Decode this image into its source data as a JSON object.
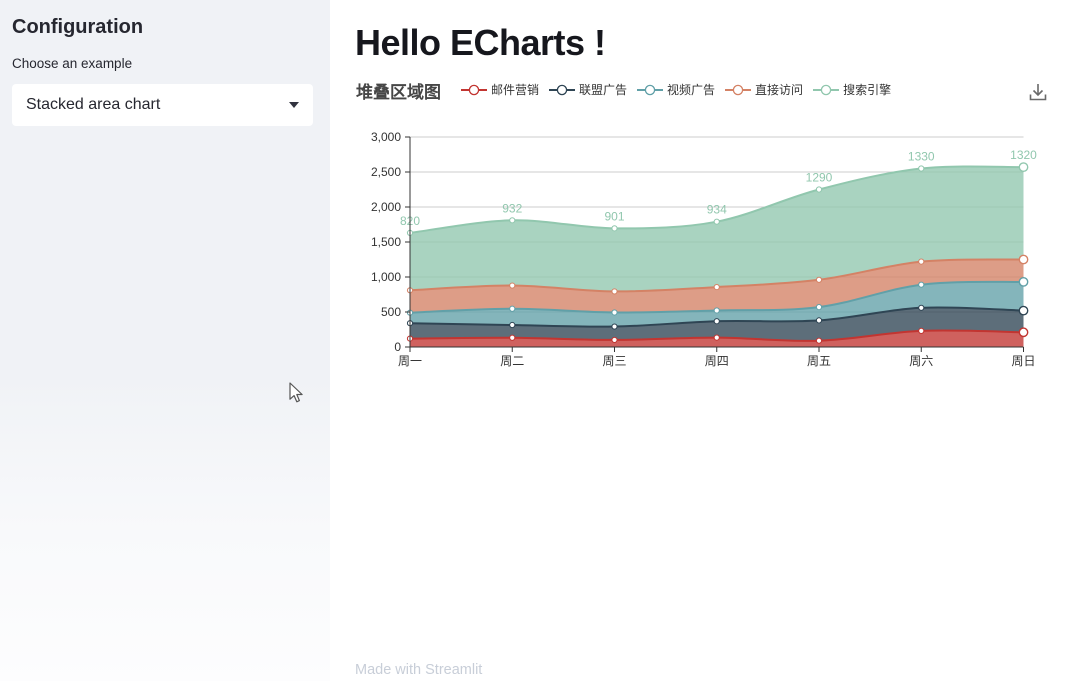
{
  "sidebar": {
    "title": "Configuration",
    "select_label": "Choose an example",
    "select_value": "Stacked area chart",
    "select_caret_icon": "caret-down-icon"
  },
  "main": {
    "title": "Hello ECharts !",
    "footer": "Made with Streamlit"
  },
  "toolbox": {
    "download_icon": "download-icon",
    "download_color": "#696969"
  },
  "chart_data": {
    "type": "area",
    "stacked": true,
    "smooth": true,
    "title": "堆叠区域图",
    "categories": [
      "周一",
      "周二",
      "周三",
      "周四",
      "周五",
      "周六",
      "周日"
    ],
    "series": [
      {
        "name": "邮件营销",
        "color": "#c23531",
        "values": [
          120,
          132,
          101,
          134,
          90,
          230,
          210
        ]
      },
      {
        "name": "联盟广告",
        "color": "#2f4554",
        "values": [
          220,
          182,
          191,
          234,
          290,
          330,
          310
        ]
      },
      {
        "name": "视频广告",
        "color": "#61a0a8",
        "values": [
          150,
          232,
          201,
          154,
          190,
          330,
          410
        ]
      },
      {
        "name": "直接访问",
        "color": "#d48265",
        "values": [
          320,
          332,
          301,
          334,
          390,
          330,
          320
        ]
      },
      {
        "name": "搜索引擎",
        "color": "#91c7ae",
        "values": [
          820,
          932,
          901,
          934,
          1290,
          1330,
          1320
        ],
        "show_point_labels": true
      }
    ],
    "point_labels": [
      "820",
      "932",
      "901",
      "934",
      "1290",
      "1330",
      "1320"
    ],
    "xlabel": "",
    "ylabel": "",
    "ylim": [
      0,
      3000
    ],
    "y_ticks": [
      0,
      500,
      1000,
      1500,
      2000,
      2500,
      3000
    ],
    "y_tick_labels": [
      "0",
      "500",
      "1,000",
      "1,500",
      "2,000",
      "2,500",
      "3,000"
    ],
    "grid": true,
    "legend_position": "top",
    "axis_color": "#333333",
    "grid_color": "#cccccc",
    "area_opacity": 0.78
  }
}
